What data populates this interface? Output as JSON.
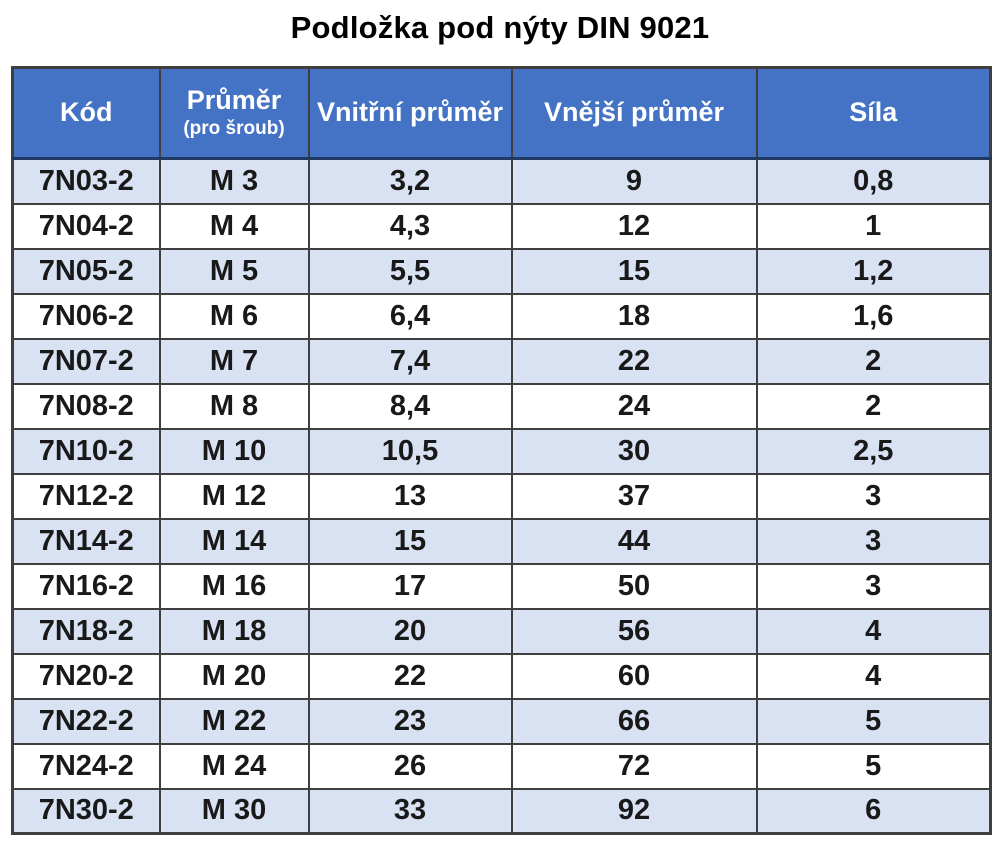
{
  "title": "Podložka pod nýty DIN 9021",
  "colors": {
    "header_bg": "#4472C4",
    "header_text": "#FFFFFF",
    "row_alt_bg": "#D9E2F3",
    "row_bg": "#FFFFFF",
    "border": "#3f3f3f",
    "header_bottom_border": "#1F3864",
    "text": "#191919"
  },
  "table": {
    "columns": [
      {
        "label": "Kód",
        "sublabel": ""
      },
      {
        "label": "Průměr",
        "sublabel": "(pro šroub)"
      },
      {
        "label": "Vnitřní průměr",
        "sublabel": ""
      },
      {
        "label": "Vnější průměr",
        "sublabel": ""
      },
      {
        "label": "Síla",
        "sublabel": ""
      }
    ],
    "rows": [
      [
        "7N03-2",
        "M 3",
        "3,2",
        "9",
        "0,8"
      ],
      [
        "7N04-2",
        "M 4",
        "4,3",
        "12",
        "1"
      ],
      [
        "7N05-2",
        "M 5",
        "5,5",
        "15",
        "1,2"
      ],
      [
        "7N06-2",
        "M 6",
        "6,4",
        "18",
        "1,6"
      ],
      [
        "7N07-2",
        "M 7",
        "7,4",
        "22",
        "2"
      ],
      [
        "7N08-2",
        "M 8",
        "8,4",
        "24",
        "2"
      ],
      [
        "7N10-2",
        "M 10",
        "10,5",
        "30",
        "2,5"
      ],
      [
        "7N12-2",
        "M 12",
        "13",
        "37",
        "3"
      ],
      [
        "7N14-2",
        "M 14",
        "15",
        "44",
        "3"
      ],
      [
        "7N16-2",
        "M 16",
        "17",
        "50",
        "3"
      ],
      [
        "7N18-2",
        "M 18",
        "20",
        "56",
        "4"
      ],
      [
        "7N20-2",
        "M 20",
        "22",
        "60",
        "4"
      ],
      [
        "7N22-2",
        "M 22",
        "23",
        "66",
        "5"
      ],
      [
        "7N24-2",
        "M 24",
        "26",
        "72",
        "5"
      ],
      [
        "7N30-2",
        "M 30",
        "33",
        "92",
        "6"
      ]
    ]
  }
}
